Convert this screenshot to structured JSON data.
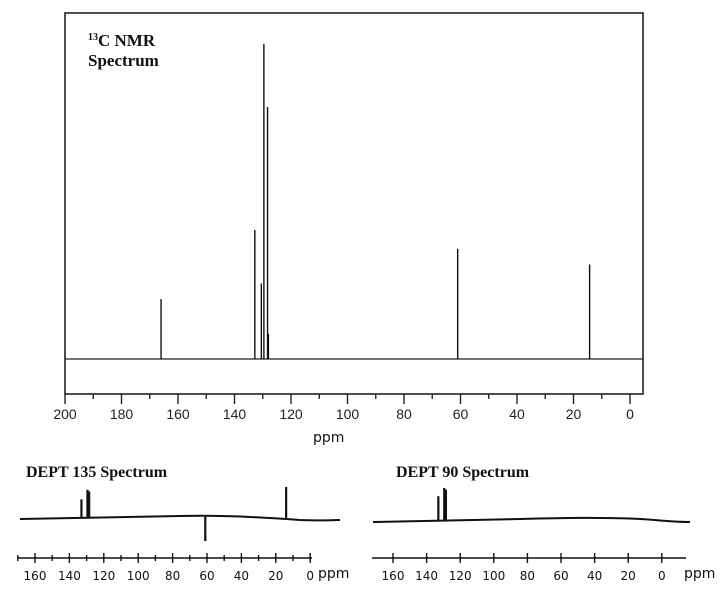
{
  "chart_data": [
    {
      "type": "line",
      "title": "13C NMR Spectrum",
      "title_parts": {
        "sup": "13",
        "rest": "C NMR",
        "line2": "Spectrum"
      },
      "xlabel": "ppm",
      "ylabel": "",
      "xlim": [
        200,
        0
      ],
      "x_reversed": true,
      "grid": false,
      "x_ticks": [
        200,
        180,
        160,
        140,
        120,
        100,
        80,
        60,
        40,
        20,
        0
      ],
      "x_minor_tick_step": 10,
      "peaks": [
        {
          "ppm": 166.0,
          "rel_height": 0.19
        },
        {
          "ppm": 132.8,
          "rel_height": 0.41
        },
        {
          "ppm": 130.5,
          "rel_height": 0.24
        },
        {
          "ppm": 129.6,
          "rel_height": 1.0
        },
        {
          "ppm": 128.3,
          "rel_height": 0.8
        },
        {
          "ppm": 128.0,
          "rel_height": 0.08
        },
        {
          "ppm": 61.0,
          "rel_height": 0.35
        },
        {
          "ppm": 14.3,
          "rel_height": 0.3
        }
      ]
    },
    {
      "type": "line",
      "title": "DEPT 135 Spectrum",
      "xlabel": "ppm",
      "xlim": [
        170,
        -5
      ],
      "x_reversed": true,
      "x_ticks": [
        160,
        140,
        120,
        100,
        80,
        60,
        40,
        20,
        0
      ],
      "x_tick_labels": [
        "160",
        "140",
        "120",
        "100",
        "80",
        "60",
        "40",
        "20",
        "0"
      ],
      "peaks": [
        {
          "ppm": 133,
          "direction": "up",
          "rel_height": 0.55
        },
        {
          "ppm": 129.5,
          "direction": "up",
          "rel_height": 0.85
        },
        {
          "ppm": 128.5,
          "direction": "up",
          "rel_height": 0.8
        },
        {
          "ppm": 61,
          "direction": "down",
          "rel_height": 0.75
        },
        {
          "ppm": 14,
          "direction": "up",
          "rel_height": 1.0
        }
      ]
    },
    {
      "type": "line",
      "title": "DEPT 90 Spectrum",
      "xlabel": "ppm",
      "xlim": [
        170,
        -15
      ],
      "x_reversed": true,
      "x_ticks": [
        160,
        140,
        120,
        100,
        80,
        60,
        40,
        20,
        0
      ],
      "x_tick_labels": [
        "160",
        "140",
        "120",
        "100",
        "80",
        "60",
        "40",
        "20",
        "0"
      ],
      "peaks": [
        {
          "ppm": 133,
          "direction": "up",
          "rel_height": 0.75
        },
        {
          "ppm": 129.5,
          "direction": "up",
          "rel_height": 1.0
        },
        {
          "ppm": 128.5,
          "direction": "up",
          "rel_height": 0.95
        }
      ]
    }
  ],
  "main": {
    "title_sup": "13",
    "title_main": "C NMR",
    "title_line2": "Spectrum",
    "xlabel": "ppm",
    "tick_labels": [
      "200",
      "180",
      "160",
      "140",
      "120",
      "100",
      "80",
      "60",
      "40",
      "20",
      "0"
    ]
  },
  "dept135": {
    "title": "DEPT 135 Spectrum",
    "tick_labels": [
      "160",
      "140",
      "120",
      "100",
      "80",
      "60",
      "40",
      "20",
      "0"
    ],
    "unit": "ppm"
  },
  "dept90": {
    "title": "DEPT 90 Spectrum",
    "tick_labels": [
      "160",
      "140",
      "120",
      "100",
      "80",
      "60",
      "40",
      "20",
      "0"
    ],
    "unit": "ppm"
  }
}
